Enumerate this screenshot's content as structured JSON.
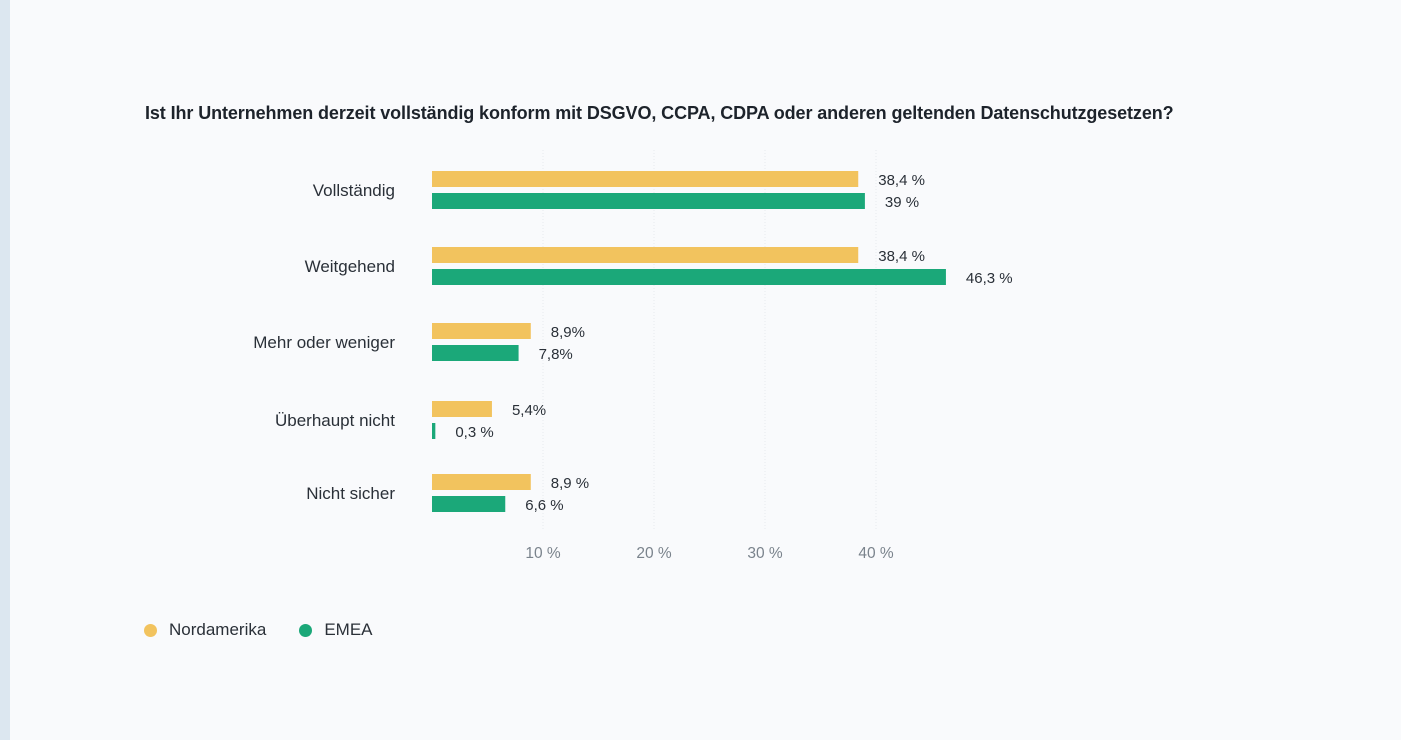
{
  "chart_data": {
    "type": "bar",
    "orientation": "horizontal",
    "title": "Ist Ihr Unternehmen derzeit vollständig konform mit DSGVO, CCPA, CDPA oder anderen geltenden Datenschutzgesetzen?",
    "xlabel": "",
    "ylabel": "",
    "categories": [
      "Vollständig",
      "Weitgehend",
      "Mehr oder weniger",
      "Überhaupt nicht",
      "Nicht sicher"
    ],
    "series": [
      {
        "name": "Nordamerika",
        "color": "#f2c35e",
        "values": [
          38.4,
          38.4,
          8.9,
          5.4,
          8.9
        ],
        "labels": [
          "38,4 %",
          "38,4 %",
          "8,9%",
          "5,4%",
          "8,9 %"
        ]
      },
      {
        "name": "EMEA",
        "color": "#1ba879",
        "values": [
          39,
          46.3,
          7.8,
          0.3,
          6.6
        ],
        "labels": [
          "39 %",
          "46,3 %",
          "7,8%",
          "0,3 %",
          "6,6 %"
        ]
      }
    ],
    "xlim": [
      0,
      50
    ],
    "x_ticks": [
      10,
      20,
      30,
      40
    ],
    "x_tick_labels": [
      "10 %",
      "20 %",
      "30 %",
      "40 %"
    ],
    "grid": "vertical dotted",
    "legend_position": "bottom-left"
  }
}
